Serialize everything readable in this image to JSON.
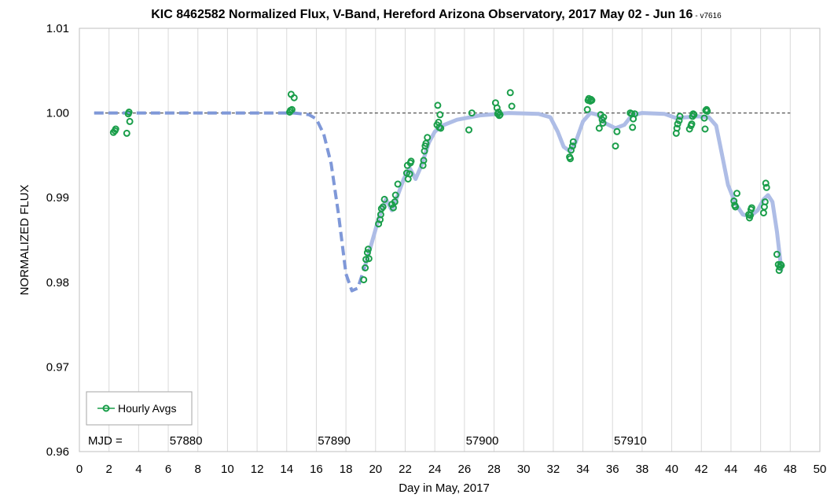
{
  "chart_data": {
    "type": "scatter",
    "title": "KIC 8462582 Normalized Flux, V-Band, Hereford Arizona Observatory, 2017 May 02 - Jun 16",
    "version_note": "- v7616",
    "xlabel": "Day in May, 2017",
    "ylabel": "NORMALIZED FLUX",
    "xlim": [
      0,
      50
    ],
    "ylim": [
      0.96,
      1.01
    ],
    "x_ticks": [
      "0",
      "2",
      "4",
      "6",
      "8",
      "10",
      "12",
      "14",
      "16",
      "18",
      "20",
      "22",
      "24",
      "26",
      "28",
      "30",
      "32",
      "34",
      "36",
      "38",
      "40",
      "42",
      "44",
      "46",
      "48",
      "50"
    ],
    "y_ticks": [
      "0.96",
      "0.97",
      "0.98",
      "0.99",
      "1.00",
      "1.01"
    ],
    "grid": "vertical",
    "legend": {
      "position": "bottom-left",
      "entries": [
        "Hourly Avgs"
      ]
    },
    "mjd": {
      "label": "MJD =",
      "labels": [
        {
          "text": "57880",
          "x": 7.2
        },
        {
          "text": "57890",
          "x": 17.2
        },
        {
          "text": "57900",
          "x": 27.2
        },
        {
          "text": "57910",
          "x": 37.2
        }
      ]
    },
    "reference_line": {
      "y": 1.0,
      "from": 1,
      "to": 48
    },
    "colors": {
      "points": "#1a9e4a",
      "fit": "#aebde6",
      "fit_dashed": "#7f98d8",
      "reference": "#555555",
      "grid": "#d9d9d9"
    },
    "fit_dashed": [
      [
        1.0,
        1.0
      ],
      [
        14.5,
        1.0
      ],
      [
        15.5,
        0.9998
      ],
      [
        16.0,
        0.9993
      ],
      [
        16.5,
        0.9975
      ],
      [
        17.0,
        0.994
      ],
      [
        17.5,
        0.988
      ],
      [
        18.0,
        0.981
      ],
      [
        18.4,
        0.979
      ],
      [
        18.8,
        0.9793
      ],
      [
        19.3,
        0.982
      ]
    ],
    "fit_solid": [
      [
        19.3,
        0.982
      ],
      [
        19.8,
        0.985
      ],
      [
        20.2,
        0.9875
      ],
      [
        20.7,
        0.9898
      ],
      [
        21.1,
        0.9885
      ],
      [
        21.5,
        0.9903
      ],
      [
        21.9,
        0.9922
      ],
      [
        22.3,
        0.9935
      ],
      [
        22.7,
        0.9922
      ],
      [
        23.1,
        0.9938
      ],
      [
        23.6,
        0.9965
      ],
      [
        24.0,
        0.9978
      ],
      [
        24.5,
        0.9985
      ],
      [
        25.5,
        0.9992
      ],
      [
        27.0,
        0.9997
      ],
      [
        29.0,
        1.0
      ],
      [
        31.0,
        0.9999
      ],
      [
        31.8,
        0.9995
      ],
      [
        32.3,
        0.9978
      ],
      [
        32.7,
        0.996
      ],
      [
        33.1,
        0.9955
      ],
      [
        33.5,
        0.9965
      ],
      [
        34.0,
        0.999
      ],
      [
        34.5,
        1.0
      ],
      [
        35.0,
        0.9998
      ],
      [
        35.5,
        0.9988
      ],
      [
        36.2,
        0.9982
      ],
      [
        36.8,
        0.9986
      ],
      [
        37.3,
        0.9997
      ],
      [
        38.0,
        1.0
      ],
      [
        39.5,
        0.9999
      ],
      [
        40.3,
        0.9994
      ],
      [
        41.0,
        0.9995
      ],
      [
        41.8,
        0.9996
      ],
      [
        42.5,
        0.9995
      ],
      [
        43.0,
        0.9985
      ],
      [
        43.4,
        0.995
      ],
      [
        43.8,
        0.9915
      ],
      [
        44.3,
        0.9893
      ],
      [
        44.8,
        0.988
      ],
      [
        45.3,
        0.9878
      ],
      [
        45.8,
        0.9885
      ],
      [
        46.2,
        0.9898
      ],
      [
        46.5,
        0.9903
      ],
      [
        46.8,
        0.9895
      ],
      [
        47.1,
        0.986
      ],
      [
        47.4,
        0.9815
      ]
    ],
    "series": [
      {
        "name": "Hourly Avgs",
        "points": [
          [
            2.3,
            0.9977
          ],
          [
            2.4,
            0.9979
          ],
          [
            2.45,
            0.9981
          ],
          [
            3.2,
            0.9976
          ],
          [
            3.3,
            0.9999
          ],
          [
            3.35,
            1.0001
          ],
          [
            3.4,
            0.999
          ],
          [
            14.2,
            1.0001
          ],
          [
            14.25,
            1.0003
          ],
          [
            14.3,
            1.0022
          ],
          [
            14.35,
            1.0004
          ],
          [
            14.5,
            1.0018
          ],
          [
            19.2,
            0.9803
          ],
          [
            19.3,
            0.9817
          ],
          [
            19.35,
            0.9827
          ],
          [
            19.45,
            0.9835
          ],
          [
            19.5,
            0.9839
          ],
          [
            19.55,
            0.9828
          ],
          [
            20.2,
            0.9869
          ],
          [
            20.3,
            0.9874
          ],
          [
            20.35,
            0.988
          ],
          [
            20.4,
            0.9887
          ],
          [
            20.5,
            0.9889
          ],
          [
            20.6,
            0.9898
          ],
          [
            21.1,
            0.9892
          ],
          [
            21.2,
            0.9888
          ],
          [
            21.3,
            0.9895
          ],
          [
            21.35,
            0.9903
          ],
          [
            21.5,
            0.9916
          ],
          [
            22.1,
            0.9929
          ],
          [
            22.15,
            0.9938
          ],
          [
            22.2,
            0.9922
          ],
          [
            22.3,
            0.9928
          ],
          [
            22.35,
            0.9941
          ],
          [
            22.4,
            0.9943
          ],
          [
            23.2,
            0.9938
          ],
          [
            23.25,
            0.9944
          ],
          [
            23.3,
            0.9955
          ],
          [
            23.35,
            0.9961
          ],
          [
            23.4,
            0.9964
          ],
          [
            23.5,
            0.9971
          ],
          [
            24.15,
            0.9986
          ],
          [
            24.2,
            1.0009
          ],
          [
            24.25,
            0.9989
          ],
          [
            24.3,
            0.9983
          ],
          [
            24.35,
            0.9998
          ],
          [
            24.4,
            0.9982
          ],
          [
            26.3,
            0.998
          ],
          [
            26.5,
            1.0
          ],
          [
            28.1,
            1.0012
          ],
          [
            28.2,
            1.0006
          ],
          [
            28.25,
            0.9999
          ],
          [
            28.3,
            1.0001
          ],
          [
            28.35,
            0.9997
          ],
          [
            28.4,
            0.9998
          ],
          [
            29.1,
            1.0024
          ],
          [
            29.2,
            1.0008
          ],
          [
            33.1,
            0.9948
          ],
          [
            33.15,
            0.9946
          ],
          [
            33.2,
            0.9956
          ],
          [
            33.3,
            0.9961
          ],
          [
            33.35,
            0.9966
          ],
          [
            34.3,
            1.0004
          ],
          [
            34.35,
            1.0015
          ],
          [
            34.4,
            1.0017
          ],
          [
            34.5,
            1.0014
          ],
          [
            34.55,
            1.0016
          ],
          [
            34.6,
            1.0015
          ],
          [
            35.1,
            0.9982
          ],
          [
            35.2,
            0.9998
          ],
          [
            35.3,
            0.9992
          ],
          [
            35.35,
            0.9988
          ],
          [
            35.4,
            0.9995
          ],
          [
            36.2,
            0.9961
          ],
          [
            36.3,
            0.9978
          ],
          [
            37.2,
            1.0
          ],
          [
            37.3,
            0.9999
          ],
          [
            37.35,
            0.9983
          ],
          [
            37.4,
            0.9993
          ],
          [
            37.5,
            0.9999
          ],
          [
            40.3,
            0.9976
          ],
          [
            40.35,
            0.9982
          ],
          [
            40.4,
            0.9987
          ],
          [
            40.5,
            0.9991
          ],
          [
            40.55,
            0.9996
          ],
          [
            41.2,
            0.9981
          ],
          [
            41.3,
            0.9985
          ],
          [
            41.35,
            0.9987
          ],
          [
            41.4,
            0.9996
          ],
          [
            41.45,
            0.9999
          ],
          [
            41.5,
            0.9998
          ],
          [
            42.2,
            0.9994
          ],
          [
            42.25,
            0.9981
          ],
          [
            42.3,
            1.0003
          ],
          [
            42.35,
            1.0004
          ],
          [
            42.4,
            1.0002
          ],
          [
            44.2,
            0.9896
          ],
          [
            44.25,
            0.9891
          ],
          [
            44.3,
            0.9889
          ],
          [
            44.4,
            0.9905
          ],
          [
            45.2,
            0.988
          ],
          [
            45.25,
            0.9876
          ],
          [
            45.3,
            0.9879
          ],
          [
            45.35,
            0.9886
          ],
          [
            45.4,
            0.9888
          ],
          [
            46.2,
            0.9882
          ],
          [
            46.25,
            0.9889
          ],
          [
            46.3,
            0.9895
          ],
          [
            46.35,
            0.9917
          ],
          [
            46.4,
            0.9912
          ],
          [
            47.1,
            0.9833
          ],
          [
            47.2,
            0.9821
          ],
          [
            47.25,
            0.9814
          ],
          [
            47.3,
            0.9818
          ],
          [
            47.35,
            0.9821
          ],
          [
            47.4,
            0.982
          ]
        ]
      }
    ]
  }
}
